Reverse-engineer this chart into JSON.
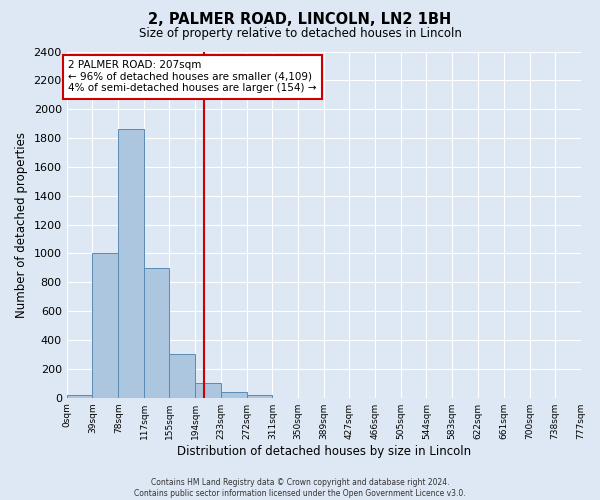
{
  "title": "2, PALMER ROAD, LINCOLN, LN2 1BH",
  "subtitle": "Size of property relative to detached houses in Lincoln",
  "xlabel": "Distribution of detached houses by size in Lincoln",
  "ylabel": "Number of detached properties",
  "bin_edges": [
    0,
    39,
    78,
    117,
    155,
    194,
    233,
    272,
    311,
    350,
    389,
    427,
    466,
    505,
    544,
    583,
    622,
    661,
    700,
    738,
    777
  ],
  "bin_labels": [
    "0sqm",
    "39sqm",
    "78sqm",
    "117sqm",
    "155sqm",
    "194sqm",
    "233sqm",
    "272sqm",
    "311sqm",
    "350sqm",
    "389sqm",
    "427sqm",
    "466sqm",
    "505sqm",
    "544sqm",
    "583sqm",
    "622sqm",
    "661sqm",
    "700sqm",
    "738sqm",
    "777sqm"
  ],
  "bar_heights": [
    20,
    1000,
    1860,
    900,
    300,
    100,
    40,
    20,
    0,
    0,
    0,
    0,
    0,
    0,
    0,
    0,
    0,
    0,
    0,
    0
  ],
  "bar_color": "#adc6e0",
  "bar_edge_color": "#5a8ab5",
  "ylim": [
    0,
    2400
  ],
  "yticks": [
    0,
    200,
    400,
    600,
    800,
    1000,
    1200,
    1400,
    1600,
    1800,
    2000,
    2200,
    2400
  ],
  "property_size": 207,
  "vline_color": "#cc0000",
  "annotation_title": "2 PALMER ROAD: 207sqm",
  "annotation_line1": "← 96% of detached houses are smaller (4,109)",
  "annotation_line2": "4% of semi-detached houses are larger (154) →",
  "annotation_box_color": "#ffffff",
  "annotation_box_edge_color": "#cc0000",
  "footer1": "Contains HM Land Registry data © Crown copyright and database right 2024.",
  "footer2": "Contains public sector information licensed under the Open Government Licence v3.0.",
  "background_color": "#dde8f4",
  "plot_bg_color": "#dde8f4",
  "grid_color": "#ffffff"
}
